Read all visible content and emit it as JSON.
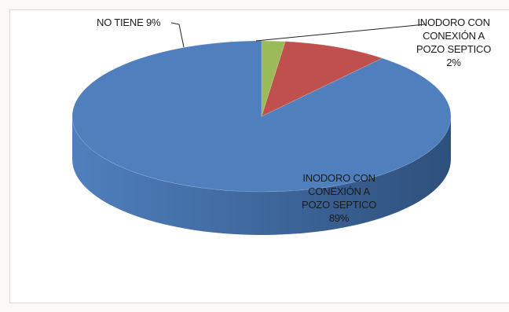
{
  "chart_data": {
    "type": "pie",
    "title": "",
    "slices": [
      {
        "label_lines": [
          "INODORO CON",
          "CONEXIÓN A",
          "POZO SEPTICO",
          "89%"
        ],
        "value": 89,
        "color": "#4f7fbd",
        "side_color": "#2e507c"
      },
      {
        "label_lines": [
          "NO TIENE 9%"
        ],
        "value": 9,
        "color": "#c0504d",
        "side_color": "#7a2b29"
      },
      {
        "label_lines": [
          "INODORO CON",
          "CONEXIÓN A",
          "POZO SEPTICO",
          "2%"
        ],
        "value": 2,
        "color": "#9bbb59",
        "side_color": "#5d7a2c"
      }
    ],
    "legend": "none",
    "style": "3d-pie"
  }
}
